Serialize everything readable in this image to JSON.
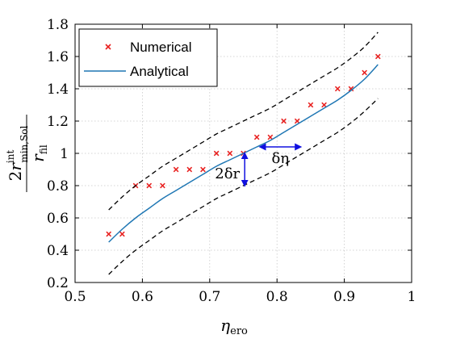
{
  "chart_data": {
    "type": "line",
    "xlim": [
      0.5,
      1.0
    ],
    "ylim": [
      0.2,
      1.8
    ],
    "xticks": [
      "0.5",
      "0.6",
      "0.7",
      "0.8",
      "0.9",
      "1"
    ],
    "yticks": [
      "0.2",
      "0.4",
      "0.6",
      "0.8",
      "1",
      "1.2",
      "1.4",
      "1.6",
      "1.8"
    ],
    "xlabel": "ηero",
    "ylabel": "2r int min,Sol / r fil",
    "grid": true,
    "legend_position": "top-left",
    "series": [
      {
        "name": "Numerical",
        "style": "markers-x",
        "color": "#e8201f",
        "x": [
          0.55,
          0.57,
          0.59,
          0.61,
          0.63,
          0.65,
          0.67,
          0.69,
          0.71,
          0.73,
          0.75,
          0.77,
          0.79,
          0.81,
          0.83,
          0.85,
          0.87,
          0.89,
          0.91,
          0.93,
          0.95
        ],
        "y": [
          0.5,
          0.5,
          0.8,
          0.8,
          0.8,
          0.9,
          0.9,
          0.9,
          1.0,
          1.0,
          1.0,
          1.1,
          1.1,
          1.2,
          1.2,
          1.3,
          1.3,
          1.4,
          1.4,
          1.5,
          1.6
        ]
      },
      {
        "name": "Analytical",
        "style": "solid-line",
        "color": "#1f77b4",
        "x": [
          0.55,
          0.57,
          0.59,
          0.61,
          0.63,
          0.65,
          0.67,
          0.69,
          0.71,
          0.73,
          0.75,
          0.77,
          0.79,
          0.81,
          0.83,
          0.85,
          0.87,
          0.89,
          0.91,
          0.93,
          0.95
        ],
        "y": [
          0.45,
          0.53,
          0.6,
          0.66,
          0.72,
          0.77,
          0.82,
          0.87,
          0.92,
          0.96,
          1.0,
          1.04,
          1.08,
          1.13,
          1.18,
          1.23,
          1.28,
          1.33,
          1.39,
          1.46,
          1.55
        ]
      },
      {
        "style": "dashed-line",
        "color": "#000000",
        "x": [
          0.55,
          0.57,
          0.59,
          0.61,
          0.63,
          0.65,
          0.67,
          0.69,
          0.71,
          0.73,
          0.75,
          0.77,
          0.79,
          0.81,
          0.83,
          0.85,
          0.87,
          0.89,
          0.91,
          0.93,
          0.95
        ],
        "y": [
          0.65,
          0.73,
          0.8,
          0.86,
          0.92,
          0.97,
          1.02,
          1.07,
          1.12,
          1.16,
          1.2,
          1.24,
          1.28,
          1.33,
          1.38,
          1.43,
          1.48,
          1.53,
          1.59,
          1.66,
          1.75
        ]
      },
      {
        "style": "dashed-line",
        "color": "#000000",
        "x": [
          0.55,
          0.57,
          0.59,
          0.61,
          0.63,
          0.65,
          0.67,
          0.69,
          0.71,
          0.73,
          0.75,
          0.77,
          0.79,
          0.81,
          0.83,
          0.85,
          0.87,
          0.89,
          0.91,
          0.93,
          0.95
        ],
        "y": [
          0.25,
          0.33,
          0.4,
          0.46,
          0.52,
          0.57,
          0.62,
          0.67,
          0.72,
          0.76,
          0.8,
          0.84,
          0.88,
          0.93,
          0.98,
          1.03,
          1.08,
          1.13,
          1.19,
          1.26,
          1.34
        ]
      }
    ],
    "annotations": [
      {
        "label": "2δr",
        "arrow": "vertical",
        "x": 0.752,
        "y_from": 0.8,
        "y_to": 1.0
      },
      {
        "label": "δη",
        "arrow": "horizontal",
        "y": 1.04,
        "x_from": 0.775,
        "x_to": 0.835
      }
    ]
  }
}
